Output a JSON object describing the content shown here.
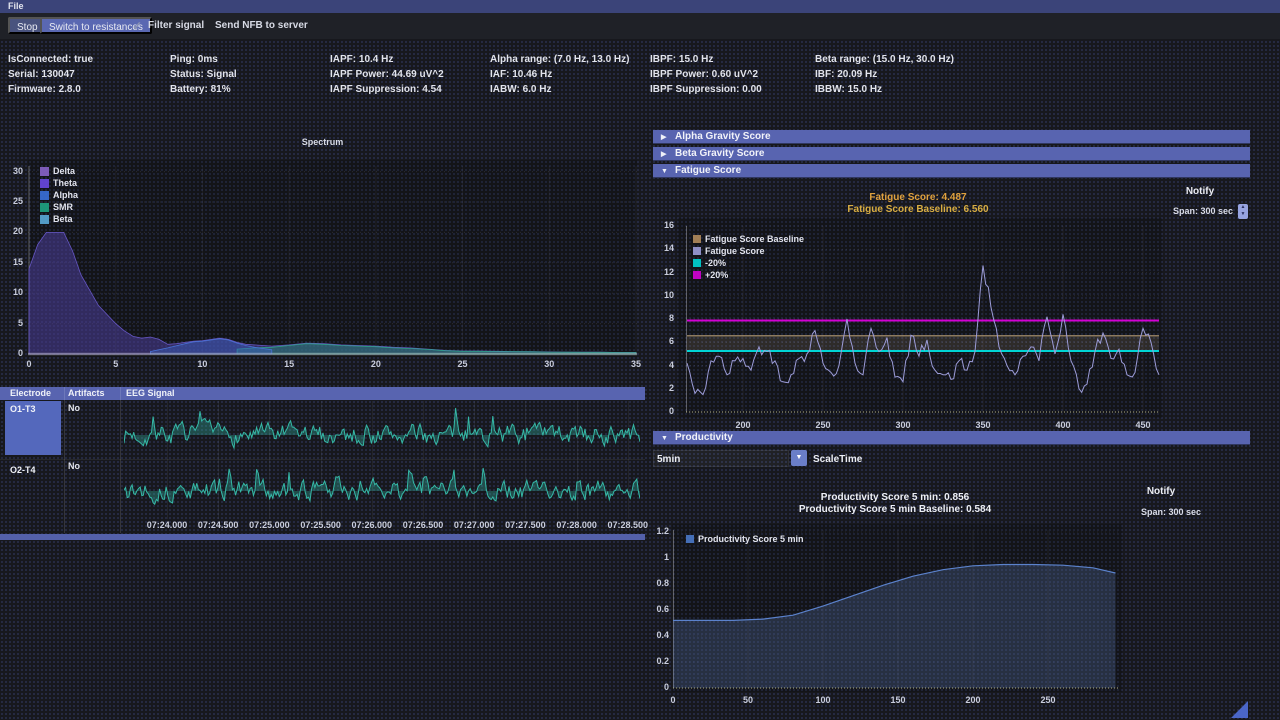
{
  "menu": {
    "file": "File"
  },
  "toolbar": {
    "stop": "Stop",
    "switch_resistances": "Switch to resistances",
    "check_icon": "✓",
    "filter_signal": "Filter signal",
    "send_nfb": "Send NFB to server"
  },
  "status": {
    "columns": [
      [
        "IsConnected: true",
        "Serial: 130047",
        "Firmware: 2.8.0"
      ],
      [
        "Ping: 0ms",
        "Status: Signal",
        "Battery: 81%"
      ],
      [
        "IAPF: 10.4 Hz",
        "IAPF Power: 44.69 uV^2",
        "IAPF Suppression: 4.54"
      ],
      [
        "Alpha range: (7.0 Hz, 13.0 Hz)",
        "IAF: 10.46 Hz",
        "IABW: 6.0 Hz"
      ],
      [
        "IBPF: 15.0 Hz",
        "IBPF Power: 0.60 uV^2",
        "IBPF Suppression: 0.00"
      ],
      [
        "Beta range: (15.0 Hz, 30.0 Hz)",
        "IBF: 20.09 Hz",
        "IBBW: 15.0 Hz"
      ]
    ]
  },
  "panels": {
    "alpha_header": "Alpha Gravity Score",
    "beta_header": "Beta Gravity Score",
    "fatigue_header": "Fatigue Score",
    "productivity_header": "Productivity",
    "collapsed_icon": "▶",
    "expanded_icon": "▼"
  },
  "fatigue_panel": {
    "score_text": "Fatigue Score: 4.487",
    "baseline_text": "Fatigue Score Baseline: 6.560",
    "notify": "Notify",
    "span": "Span: 300 sec"
  },
  "productivity_panel": {
    "interval_value": "5min",
    "scale_label": "ScaleTime",
    "score_text": "Productivity Score 5 min: 0.856",
    "baseline_text": "Productivity Score 5 min Baseline: 0.584",
    "notify": "Notify",
    "span": "Span: 300 sec"
  },
  "eeg_table": {
    "headers": [
      "Electrode",
      "Artifacts",
      "EEG Signal"
    ],
    "rows": [
      {
        "electrode": "O1-T3",
        "artifacts": "No"
      },
      {
        "electrode": "O2-T4",
        "artifacts": "No"
      }
    ]
  },
  "chart_data": [
    {
      "id": "spectrum",
      "type": "area",
      "title": "Spectrum",
      "xlabel": "",
      "ylabel": "",
      "xlim": [
        0,
        35
      ],
      "ylim": [
        0,
        32
      ],
      "x_ticks": [
        0,
        5,
        10,
        15,
        20,
        25,
        30,
        35
      ],
      "y_ticks": [
        0,
        5,
        10,
        15,
        20,
        25,
        30
      ],
      "legend": [
        {
          "name": "Delta",
          "color": "#8a63c9"
        },
        {
          "name": "Theta",
          "color": "#6a48e0"
        },
        {
          "name": "Alpha",
          "color": "#3a6fd8"
        },
        {
          "name": "SMR",
          "color": "#1fa383"
        },
        {
          "name": "Beta",
          "color": "#5aa8d8"
        }
      ],
      "series": [
        {
          "name": "spectrum-envelope",
          "line": "#6a5acd",
          "fill": "rgba(80,65,160,0.55)",
          "x": [
            0,
            0.5,
            1,
            2,
            2.5,
            3,
            4,
            5,
            5.5,
            6,
            6.5,
            7,
            7.5,
            8,
            8.5,
            9,
            9.5,
            10,
            10.5,
            11,
            11.5,
            12,
            12.5,
            13,
            14,
            15,
            16,
            17,
            18,
            19,
            20,
            21,
            22,
            23,
            24,
            25,
            26,
            27,
            28,
            29,
            30,
            31,
            32,
            33,
            34,
            35
          ],
          "y": [
            14,
            18,
            20,
            20,
            17,
            13,
            8,
            5,
            3.8,
            2.9,
            2.6,
            2.8,
            2.4,
            1.6,
            1.7,
            1.9,
            2.1,
            2.2,
            2.4,
            2.6,
            2.4,
            1.9,
            1.6,
            1.5,
            1.3,
            1.5,
            1.8,
            1.7,
            1.5,
            1.4,
            1.3,
            1.1,
            1.0,
            0.8,
            0.6,
            0.5,
            0.5,
            0.45,
            0.4,
            0.4,
            0.35,
            0.3,
            0.3,
            0.3,
            0.25,
            0.25
          ]
        },
        {
          "name": "beta-band",
          "line": "#2fa58c",
          "fill": "rgba(40,150,125,0.45)",
          "x": [
            12,
            13,
            14,
            15,
            16,
            17,
            18,
            19,
            20,
            21,
            22,
            23,
            24,
            25,
            26,
            27,
            28,
            29,
            30,
            31,
            32,
            33,
            34,
            35
          ],
          "y": [
            0.8,
            1.0,
            1.1,
            1.4,
            1.7,
            1.6,
            1.4,
            1.3,
            1.2,
            1.0,
            0.9,
            0.75,
            0.55,
            0.45,
            0.45,
            0.4,
            0.38,
            0.36,
            0.32,
            0.3,
            0.28,
            0.28,
            0.24,
            0.24
          ]
        },
        {
          "name": "alpha-band",
          "line": "#4a74d8",
          "fill": "rgba(60,100,200,0.45)",
          "x": [
            7,
            8,
            9,
            9.5,
            10,
            10.5,
            11,
            11.5,
            12,
            12.5,
            13,
            14
          ],
          "y": [
            0.4,
            1.0,
            1.7,
            2.0,
            2.1,
            2.3,
            2.5,
            2.3,
            1.8,
            1.4,
            1.1,
            0.7
          ]
        }
      ]
    },
    {
      "id": "eeg",
      "type": "line",
      "color": "#35b8a6",
      "time_labels": [
        "07:24.000",
        "07:24.500",
        "07:25.000",
        "07:25.500",
        "07:26.000",
        "07:26.500",
        "07:27.000",
        "07:27.500",
        "07:28.000",
        "07:28.500"
      ],
      "rows": [
        {
          "electrode": "O1-T3",
          "noise_seed": 7
        },
        {
          "electrode": "O2-T4",
          "noise_seed": 13
        }
      ]
    },
    {
      "id": "fatigue",
      "type": "line",
      "score": 4.487,
      "baseline": 6.56,
      "band_low": 5.248,
      "band_high": 7.872,
      "xlim": [
        163,
        462
      ],
      "ylim": [
        0,
        16.7
      ],
      "x_ticks": [
        200,
        250,
        300,
        350,
        400,
        450
      ],
      "y_ticks": [
        0,
        2,
        4,
        6,
        8,
        10,
        12,
        14,
        16
      ],
      "legend": [
        {
          "name": "Fatigue Score Baseline",
          "color": "#b08a5c"
        },
        {
          "name": "Fatigue Score",
          "color": "#9c9cd8"
        },
        {
          "name": "-20%",
          "color": "#00d4d4"
        },
        {
          "name": "+20%",
          "color": "#d400d4"
        }
      ],
      "x_start": 165,
      "x_step": 5,
      "y": [
        4.2,
        1.6,
        1.5,
        4.4,
        4.8,
        3.2,
        4.4,
        4.6,
        3.6,
        5.6,
        5.2,
        4.4,
        2.6,
        3.2,
        4.6,
        5.0,
        7.0,
        4.2,
        3.4,
        4.0,
        8.0,
        4.2,
        3.2,
        7.2,
        5.2,
        6.4,
        3.0,
        2.6,
        6.6,
        4.8,
        6.2,
        3.6,
        3.2,
        2.8,
        4.4,
        3.6,
        5.2,
        12.6,
        9.0,
        5.6,
        4.0,
        3.2,
        4.8,
        5.6,
        4.4,
        8.2,
        5.0,
        8.4,
        4.4,
        2.0,
        2.4,
        5.2,
        6.8,
        4.6,
        5.4,
        3.2,
        3.4,
        7.2,
        6.0,
        3.2
      ]
    },
    {
      "id": "productivity",
      "type": "area",
      "score": 0.856,
      "baseline": 0.584,
      "xlim": [
        0,
        299
      ],
      "ylim": [
        0,
        1.29
      ],
      "x_ticks": [
        0,
        50,
        100,
        150,
        200,
        250
      ],
      "y_ticks": [
        0,
        0.2,
        0.4,
        0.6,
        0.8,
        1,
        1.2
      ],
      "legend": [
        {
          "name": "Productivity Score 5 min",
          "color": "#4a78c8"
        }
      ],
      "x": [
        0,
        20,
        40,
        60,
        80,
        100,
        120,
        140,
        160,
        180,
        200,
        220,
        240,
        260,
        280,
        295
      ],
      "y": [
        0.52,
        0.52,
        0.52,
        0.53,
        0.56,
        0.63,
        0.71,
        0.79,
        0.86,
        0.91,
        0.94,
        0.95,
        0.95,
        0.945,
        0.925,
        0.885
      ]
    }
  ],
  "colors": {
    "accent_blue": "#5864b0",
    "orange": "#e0a23e",
    "eeg_teal": "#35b8a6",
    "fatigue_line": "#9c9cd8",
    "cyan": "#00d4d4",
    "magenta": "#d400d4",
    "baseline_tan": "#b08a5c",
    "productivity_blue": "#5b82cc"
  }
}
